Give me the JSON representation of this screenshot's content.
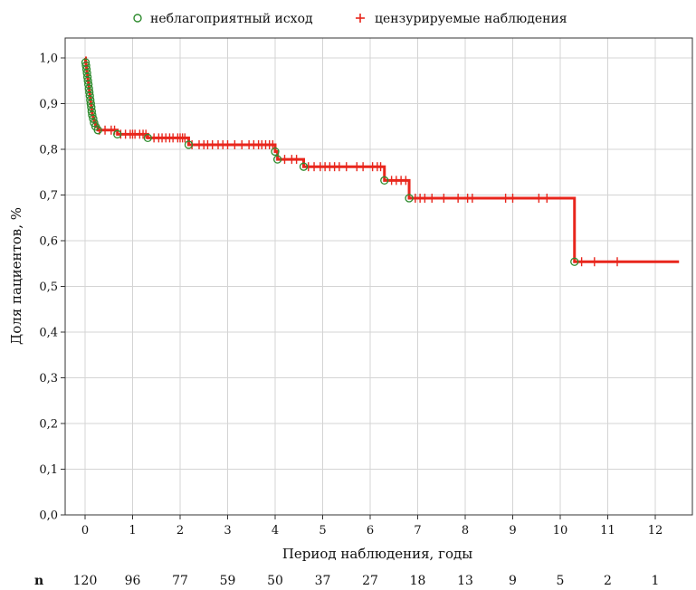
{
  "chart_data": {
    "type": "line",
    "subtype": "kaplan-meier",
    "xlabel": "Период наблюдения, годы",
    "ylabel": "Доля пациентов, %",
    "xlim": [
      -0.4,
      12.6
    ],
    "ylim": [
      0.0,
      1.05
    ],
    "x_ticks": [
      0,
      1,
      2,
      3,
      4,
      5,
      6,
      7,
      8,
      9,
      10,
      11,
      12
    ],
    "x_tick_labels": [
      "0",
      "1",
      "2",
      "3",
      "4",
      "5",
      "6",
      "7",
      "8",
      "9",
      "10",
      "11",
      "12"
    ],
    "y_ticks": [
      0.0,
      0.1,
      0.2,
      0.3,
      0.4,
      0.5,
      0.6,
      0.7,
      0.8,
      0.9,
      1.0
    ],
    "y_tick_labels": [
      "0,0",
      "0,1",
      "0,2",
      "0,3",
      "0,4",
      "0,5",
      "0,6",
      "0,7",
      "0,8",
      "0,9",
      "1,0"
    ],
    "grid": true,
    "legend_position": "top",
    "colors": {
      "curve": "#e8261c",
      "censored": "#e8261c",
      "event": "#2e8b2e",
      "grid": "#d4d4d4",
      "axis": "#333333"
    },
    "legend": [
      {
        "label": "неблагоприятный исход",
        "marker": "circle",
        "color": "#2e8b2e"
      },
      {
        "label": "цензурируемые наблюдения",
        "marker": "plus",
        "color": "#e8261c"
      }
    ],
    "survival_steps": [
      {
        "x": 0.0,
        "y": 1.0
      },
      {
        "x": 0.01,
        "y": 0.99
      },
      {
        "x": 0.02,
        "y": 0.983
      },
      {
        "x": 0.03,
        "y": 0.975
      },
      {
        "x": 0.04,
        "y": 0.967
      },
      {
        "x": 0.05,
        "y": 0.958
      },
      {
        "x": 0.06,
        "y": 0.95
      },
      {
        "x": 0.07,
        "y": 0.942
      },
      {
        "x": 0.08,
        "y": 0.933
      },
      {
        "x": 0.09,
        "y": 0.925
      },
      {
        "x": 0.1,
        "y": 0.917
      },
      {
        "x": 0.11,
        "y": 0.908
      },
      {
        "x": 0.12,
        "y": 0.9
      },
      {
        "x": 0.13,
        "y": 0.892
      },
      {
        "x": 0.14,
        "y": 0.883
      },
      {
        "x": 0.15,
        "y": 0.875
      },
      {
        "x": 0.17,
        "y": 0.867
      },
      {
        "x": 0.19,
        "y": 0.858
      },
      {
        "x": 0.22,
        "y": 0.85
      },
      {
        "x": 0.27,
        "y": 0.842
      },
      {
        "x": 0.68,
        "y": 0.833
      },
      {
        "x": 1.32,
        "y": 0.825
      },
      {
        "x": 2.18,
        "y": 0.81
      },
      {
        "x": 4.0,
        "y": 0.795
      },
      {
        "x": 4.05,
        "y": 0.778
      },
      {
        "x": 4.6,
        "y": 0.762
      },
      {
        "x": 6.3,
        "y": 0.732
      },
      {
        "x": 6.82,
        "y": 0.693
      },
      {
        "x": 10.3,
        "y": 0.554
      },
      {
        "x": 12.5,
        "y": 0.554
      }
    ],
    "events": [
      {
        "x": 0.01,
        "y": 0.99
      },
      {
        "x": 0.02,
        "y": 0.983
      },
      {
        "x": 0.03,
        "y": 0.975
      },
      {
        "x": 0.04,
        "y": 0.967
      },
      {
        "x": 0.05,
        "y": 0.958
      },
      {
        "x": 0.06,
        "y": 0.95
      },
      {
        "x": 0.07,
        "y": 0.942
      },
      {
        "x": 0.08,
        "y": 0.933
      },
      {
        "x": 0.09,
        "y": 0.925
      },
      {
        "x": 0.1,
        "y": 0.917
      },
      {
        "x": 0.11,
        "y": 0.908
      },
      {
        "x": 0.12,
        "y": 0.9
      },
      {
        "x": 0.13,
        "y": 0.892
      },
      {
        "x": 0.14,
        "y": 0.883
      },
      {
        "x": 0.15,
        "y": 0.875
      },
      {
        "x": 0.17,
        "y": 0.867
      },
      {
        "x": 0.19,
        "y": 0.858
      },
      {
        "x": 0.22,
        "y": 0.85
      },
      {
        "x": 0.27,
        "y": 0.842
      },
      {
        "x": 0.68,
        "y": 0.833
      },
      {
        "x": 1.32,
        "y": 0.825
      },
      {
        "x": 2.18,
        "y": 0.81
      },
      {
        "x": 4.0,
        "y": 0.795
      },
      {
        "x": 4.05,
        "y": 0.778
      },
      {
        "x": 4.6,
        "y": 0.762
      },
      {
        "x": 6.3,
        "y": 0.732
      },
      {
        "x": 6.82,
        "y": 0.693
      },
      {
        "x": 10.3,
        "y": 0.554
      }
    ],
    "censored_x": [
      0.3,
      0.42,
      0.55,
      0.62,
      0.75,
      0.85,
      0.95,
      1.0,
      1.05,
      1.15,
      1.22,
      1.28,
      1.45,
      1.55,
      1.62,
      1.7,
      1.78,
      1.85,
      1.95,
      2.0,
      2.05,
      2.1,
      2.25,
      2.4,
      2.5,
      2.58,
      2.68,
      2.8,
      2.9,
      3.0,
      3.15,
      3.3,
      3.45,
      3.55,
      3.65,
      3.72,
      3.8,
      3.88,
      3.95,
      4.2,
      4.35,
      4.45,
      4.7,
      4.82,
      4.95,
      5.05,
      5.15,
      5.25,
      5.35,
      5.5,
      5.72,
      5.85,
      6.05,
      6.15,
      6.22,
      6.45,
      6.55,
      6.65,
      6.75,
      6.95,
      7.05,
      7.15,
      7.3,
      7.55,
      7.85,
      8.05,
      8.15,
      8.85,
      9.0,
      9.55,
      9.72,
      10.45,
      10.72,
      11.2
    ]
  },
  "risk_table": {
    "label": "n",
    "counts": [
      "120",
      "96",
      "77",
      "59",
      "50",
      "37",
      "27",
      "18",
      "13",
      "9",
      "5",
      "2",
      "1"
    ]
  }
}
